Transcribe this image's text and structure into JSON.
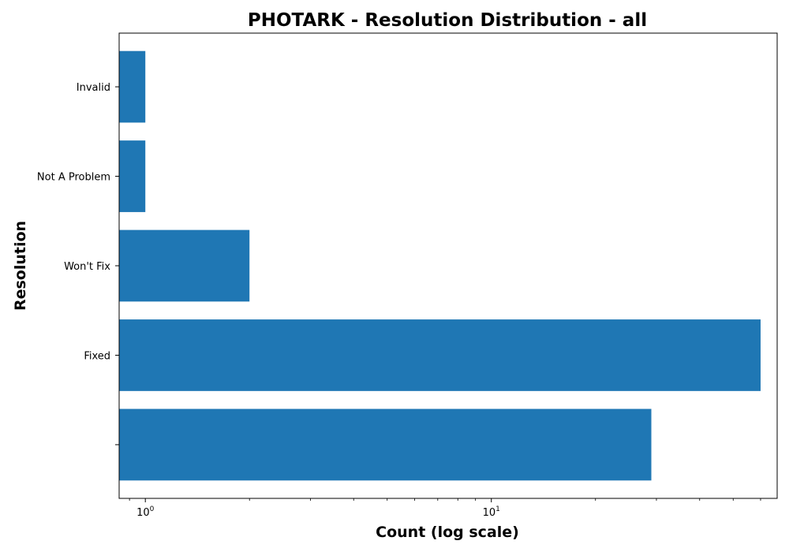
{
  "chart_data": {
    "type": "bar",
    "orientation": "horizontal",
    "title": "PHOTARK - Resolution Distribution - all",
    "xlabel": "Count (log scale)",
    "ylabel": "Resolution",
    "x_scale": "log",
    "xlim": [
      0.84,
      67
    ],
    "x_ticks": [
      {
        "value": 1,
        "base": "10",
        "exp": "0"
      },
      {
        "value": 10,
        "base": "10",
        "exp": "1"
      }
    ],
    "categories": [
      "",
      "Fixed",
      "Won't Fix",
      "Not A Problem",
      "Invalid"
    ],
    "values": [
      29,
      60,
      2,
      1,
      1
    ],
    "bar_color": "#1f77b4",
    "grid": false,
    "legend": "none"
  }
}
